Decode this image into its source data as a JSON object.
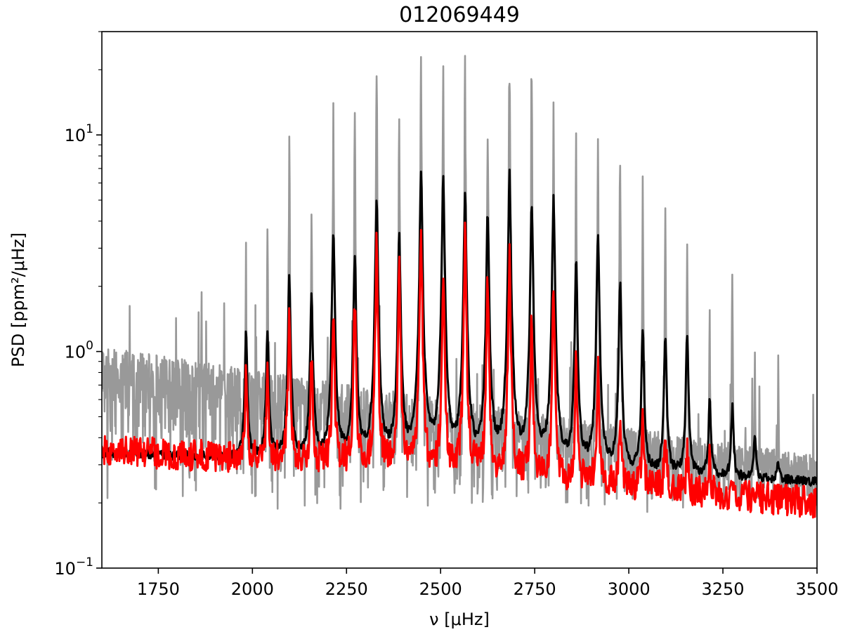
{
  "chart_data": {
    "type": "line",
    "title": "012069449",
    "xlabel": "ν [μHz]",
    "ylabel": "PSD [ppm²/μHz]",
    "xlim": [
      1600,
      3500
    ],
    "ylim": [
      0.1,
      30
    ],
    "y_scale": "log",
    "grid": false,
    "legend": "none",
    "x_ticks": [
      1750,
      2000,
      2250,
      2500,
      2750,
      3000,
      3250,
      3500
    ],
    "x_tick_labels": [
      "1750",
      "2000",
      "2250",
      "2500",
      "2750",
      "3000",
      "3250",
      "3500"
    ],
    "y_ticks": [
      {
        "value": 0.1,
        "base": "10",
        "exp": "−1"
      },
      {
        "value": 1,
        "base": "10",
        "exp": "0"
      },
      {
        "value": 10,
        "base": "10",
        "exp": "1"
      }
    ],
    "colors": {
      "raw": "#999999",
      "smoothed": "#000000",
      "model": "#ff0000"
    },
    "series": [
      {
        "key": "raw",
        "floor": 0.18,
        "background_start": 1.05,
        "background_end": 0.33,
        "peaks": [
          {
            "x": 1865,
            "y": 2.0
          },
          {
            "x": 1925,
            "y": 1.7
          },
          {
            "x": 1983,
            "y": 3.6
          },
          {
            "x": 2040,
            "y": 4.2
          },
          {
            "x": 2098,
            "y": 10.7
          },
          {
            "x": 2157,
            "y": 6.2
          },
          {
            "x": 2215,
            "y": 15.0
          },
          {
            "x": 2272,
            "y": 14.0
          },
          {
            "x": 2330,
            "y": 23.0
          },
          {
            "x": 2390,
            "y": 13.0
          },
          {
            "x": 2448,
            "y": 25.5
          },
          {
            "x": 2507,
            "y": 25.0
          },
          {
            "x": 2565,
            "y": 25.0
          },
          {
            "x": 2625,
            "y": 16.0
          },
          {
            "x": 2683,
            "y": 30.0
          },
          {
            "x": 2742,
            "y": 21.0
          },
          {
            "x": 2800,
            "y": 18.0
          },
          {
            "x": 2860,
            "y": 10.5
          },
          {
            "x": 2918,
            "y": 13.0
          },
          {
            "x": 2977,
            "y": 12.0
          },
          {
            "x": 3037,
            "y": 6.5
          },
          {
            "x": 3097,
            "y": 5.6
          },
          {
            "x": 3155,
            "y": 4.5
          },
          {
            "x": 3215,
            "y": 1.7
          },
          {
            "x": 3275,
            "y": 2.8
          },
          {
            "x": 3335,
            "y": 1.0
          },
          {
            "x": 3397,
            "y": 1.0
          }
        ]
      },
      {
        "key": "smoothed",
        "background_start": 0.34,
        "background_end": 0.25,
        "peaks": [
          {
            "x": 1983,
            "y": 1.2
          },
          {
            "x": 2040,
            "y": 1.25
          },
          {
            "x": 2098,
            "y": 2.2
          },
          {
            "x": 2157,
            "y": 1.9
          },
          {
            "x": 2215,
            "y": 3.7
          },
          {
            "x": 2272,
            "y": 2.8
          },
          {
            "x": 2330,
            "y": 5.2
          },
          {
            "x": 2390,
            "y": 3.6
          },
          {
            "x": 2448,
            "y": 6.7
          },
          {
            "x": 2507,
            "y": 6.3
          },
          {
            "x": 2565,
            "y": 5.4
          },
          {
            "x": 2625,
            "y": 4.3
          },
          {
            "x": 2683,
            "y": 6.6
          },
          {
            "x": 2742,
            "y": 4.9
          },
          {
            "x": 2800,
            "y": 5.0
          },
          {
            "x": 2860,
            "y": 2.6
          },
          {
            "x": 2918,
            "y": 3.6
          },
          {
            "x": 2977,
            "y": 2.1
          },
          {
            "x": 3037,
            "y": 1.25
          },
          {
            "x": 3097,
            "y": 1.2
          },
          {
            "x": 3155,
            "y": 1.2
          },
          {
            "x": 3215,
            "y": 0.6
          },
          {
            "x": 3275,
            "y": 0.55
          },
          {
            "x": 3335,
            "y": 0.4
          },
          {
            "x": 3397,
            "y": 0.3
          }
        ]
      },
      {
        "key": "model",
        "background_start": 0.35,
        "background_end": 0.2,
        "peaks": [
          {
            "x": 1983,
            "y": 0.8
          },
          {
            "x": 2040,
            "y": 0.95
          },
          {
            "x": 2098,
            "y": 1.6
          },
          {
            "x": 2157,
            "y": 1.0
          },
          {
            "x": 2215,
            "y": 1.6
          },
          {
            "x": 2272,
            "y": 1.8
          },
          {
            "x": 2330,
            "y": 3.2
          },
          {
            "x": 2390,
            "y": 2.4
          },
          {
            "x": 2448,
            "y": 3.7
          },
          {
            "x": 2507,
            "y": 2.5
          },
          {
            "x": 2565,
            "y": 3.6
          },
          {
            "x": 2625,
            "y": 2.2
          },
          {
            "x": 2683,
            "y": 2.9
          },
          {
            "x": 2742,
            "y": 1.5
          },
          {
            "x": 2800,
            "y": 2.0
          },
          {
            "x": 2860,
            "y": 0.9
          },
          {
            "x": 2918,
            "y": 0.85
          },
          {
            "x": 2977,
            "y": 0.5
          },
          {
            "x": 3037,
            "y": 0.5
          },
          {
            "x": 3097,
            "y": 0.45
          },
          {
            "x": 3155,
            "y": 0.35
          },
          {
            "x": 3215,
            "y": 0.35
          }
        ]
      }
    ]
  }
}
